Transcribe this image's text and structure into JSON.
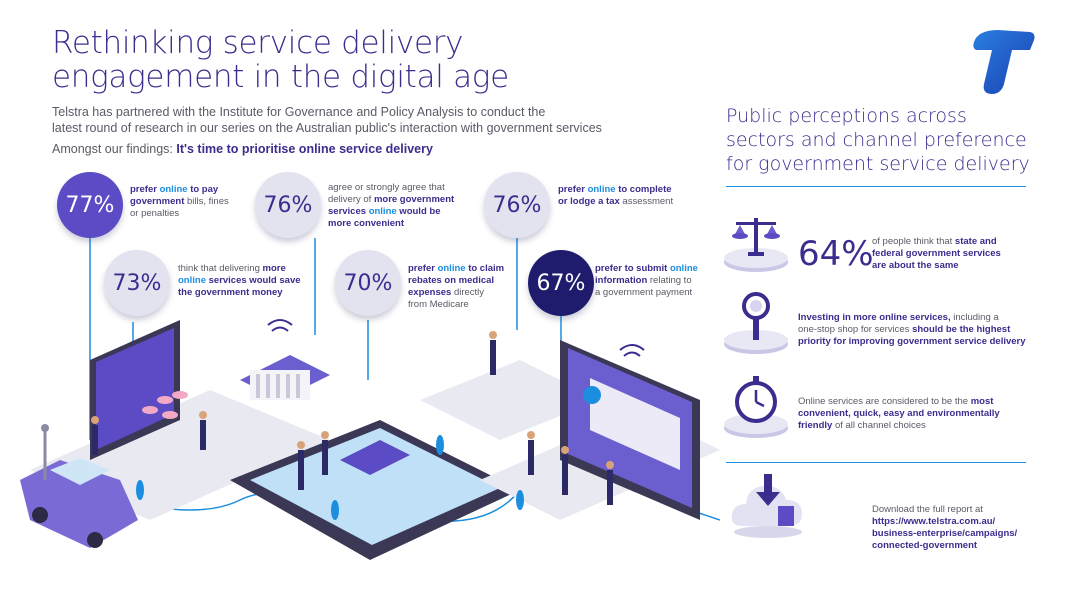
{
  "header": {
    "title_line1": "Rethinking service delivery",
    "title_line2": "engagement in the digital age",
    "intro_line1": "Telstra has partnered with the Institute for Governance and Policy Analysis to conduct the",
    "intro_line2": "latest round of research in our series on the Australian public's interaction with government services",
    "findings_prefix": "Amongst our findings: ",
    "findings_highlight": "It's time to prioritise online service delivery"
  },
  "stats": [
    {
      "value": "77%",
      "line1a": "prefer ",
      "line1b": "online",
      "line1c": " to pay",
      "line2": "government",
      "line2b": " bills, fines",
      "line3": "or penalties"
    },
    {
      "value": "76%",
      "line1": "agree or strongly agree that",
      "line2": "delivery of ",
      "line2b": "more government",
      "line3a": "services ",
      "line3b": "online",
      "line3c": " would be",
      "line4": "more convenient"
    },
    {
      "value": "76%",
      "line1a": "prefer ",
      "line1b": "online",
      "line1c": " to complete",
      "line2a": "or lodge a tax",
      "line2b": " assessment"
    },
    {
      "value": "73%",
      "line1a": "think that delivering ",
      "line1b": "more",
      "line2a": "online",
      "line2b": " services would save",
      "line3": "the government money"
    },
    {
      "value": "70%",
      "line1a": "prefer ",
      "line1b": "online",
      "line1c": " to claim",
      "line2": "rebates on medical",
      "line3a": "expenses",
      "line3b": " directly",
      "line4": "from Medicare"
    },
    {
      "value": "67%",
      "line1a": "prefer to submit ",
      "line1b": "online",
      "line2a": "information",
      "line2b": " relating to",
      "line3": "a government payment"
    }
  ],
  "perceptions": {
    "title_line1": "Public perceptions across",
    "title_line2": "sectors and channel preference",
    "title_line3": "for government service delivery",
    "item1": {
      "value": "64%",
      "line1a": "of people think that ",
      "line1b": "state and",
      "line2": "federal government services",
      "line3": "are about the same"
    },
    "item2": {
      "line1a": "Investing in more online services,",
      "line1b": " including a",
      "line2a": "one-stop shop for services ",
      "line2b": "should be the highest",
      "line3": "priority for improving government service delivery"
    },
    "item3": {
      "line1a": "Online services are considered to be the ",
      "line1b": "most",
      "line2": "convenient, quick, easy and environmentally",
      "line3a": "friendly",
      "line3b": " of all channel choices"
    }
  },
  "download": {
    "line1": "Download the full report at",
    "line2": "https://www.telstra.com.au/",
    "line3": "business-enterprise/campaigns/",
    "line4": "connected-government"
  },
  "colors": {
    "brand_purple": "#3b2d8e",
    "brand_blue": "#1b8ee0",
    "violet": "#5b4bc4",
    "navy": "#1f1c6e"
  },
  "icons": [
    "telstra-logo-icon",
    "scales-icon",
    "magnifier-icon",
    "stopwatch-icon",
    "cloud-download-icon"
  ]
}
